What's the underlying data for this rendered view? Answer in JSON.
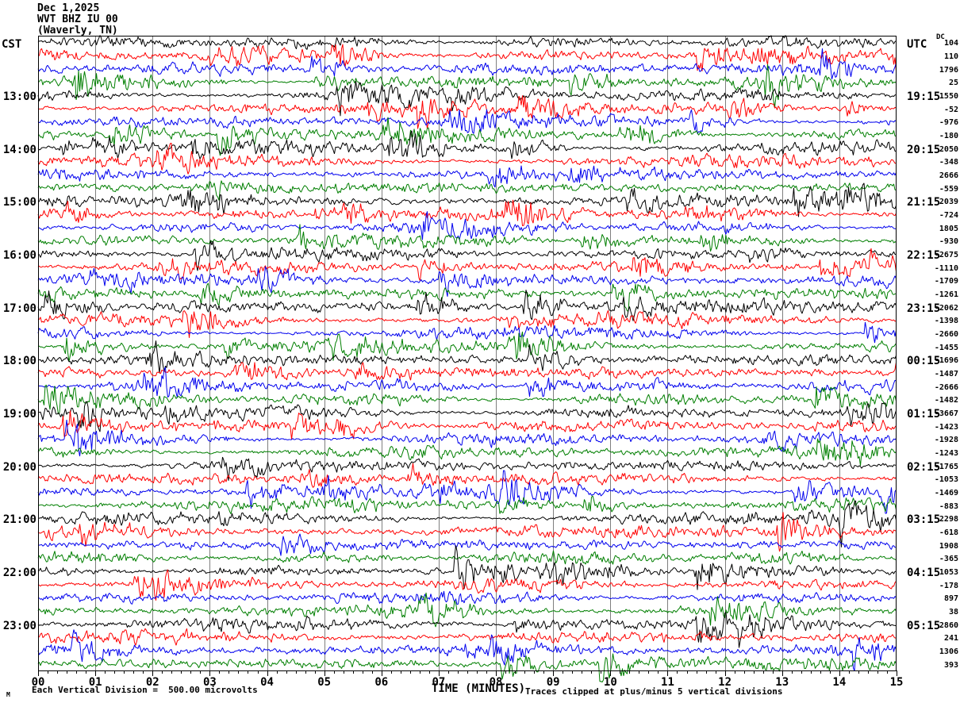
{
  "header": {
    "date": "Dec 1,2025",
    "station": "WVT BHZ IU 00",
    "location": "(Waverly, TN)"
  },
  "left_axis": {
    "header": "CST",
    "hour_labels": [
      "13:00",
      "14:00",
      "15:00",
      "16:00",
      "17:00",
      "18:00",
      "19:00",
      "20:00",
      "21:00",
      "22:00",
      "23:00"
    ]
  },
  "right_axis": {
    "header": "UTC",
    "dc_header": "DC",
    "utc_labels": [
      "19:15",
      "20:15",
      "21:15",
      "22:15",
      "23:15",
      "00:15",
      "01:15",
      "02:15",
      "03:15",
      "04:15",
      "05:15"
    ],
    "dc_values": [
      "104",
      "110",
      "1796",
      "25",
      "1550",
      "-52",
      "-976",
      "-180",
      "2050",
      "-348",
      "2666",
      "-559",
      "2039",
      "-724",
      "1805",
      "-930",
      "-2675",
      "-1110",
      "-1709",
      "-1261",
      "-2062",
      "-1398",
      "-2660",
      "-1455",
      "-1696",
      "-1487",
      "-2666",
      "-1482",
      "-3667",
      "-1423",
      "-1928",
      "-1243",
      "-1765",
      "-1053",
      "-1469",
      "-883",
      "2298",
      "-618",
      "1908",
      "-365",
      "1053",
      "-178",
      "897",
      "38",
      "2860",
      "241",
      "1306",
      "393"
    ]
  },
  "x_axis": {
    "title": "TIME (MINUTES)",
    "minute_labels": [
      "00",
      "01",
      "02",
      "03",
      "04",
      "05",
      "06",
      "07",
      "08",
      "09",
      "10",
      "11",
      "12",
      "13",
      "14",
      "15"
    ]
  },
  "footer": {
    "watermark": "M",
    "left_note": "Each Vertical Division =  500.00 microvolts",
    "right_note": "Traces clipped at plus/minus 5 vertical divisions"
  },
  "colors": {
    "trace_cycle": [
      "#000000",
      "#ff0000",
      "#0000ee",
      "#007f00"
    ],
    "grid": "#7f7f7f",
    "border": "#000000",
    "background": "#ffffff"
  },
  "chart_data": {
    "type": "line",
    "subtype": "helicorder-seismogram",
    "title": "WVT BHZ IU 00 (Waverly, TN) — Dec 1,2025",
    "xlabel": "TIME (MINUTES)",
    "x_range_minutes": [
      0,
      15
    ],
    "x_major_tick_minutes": 1,
    "x_minor_ticks_per_minute": 6,
    "row_count": 48,
    "rows_per_hour": 4,
    "minutes_per_row": 15,
    "timezone_left": "CST",
    "timezone_right": "UTC",
    "left_hour_labels_cst": [
      "13:00",
      "14:00",
      "15:00",
      "16:00",
      "17:00",
      "18:00",
      "19:00",
      "20:00",
      "21:00",
      "22:00",
      "23:00"
    ],
    "right_hour_labels_utc": [
      "19:15",
      "20:15",
      "21:15",
      "22:15",
      "23:15",
      "00:15",
      "01:15",
      "02:15",
      "03:15",
      "04:15",
      "05:15"
    ],
    "dc_offsets": [
      104,
      110,
      1796,
      25,
      1550,
      -52,
      -976,
      -180,
      2050,
      -348,
      2666,
      -559,
      2039,
      -724,
      1805,
      -930,
      -2675,
      -1110,
      -1709,
      -1261,
      -2062,
      -1398,
      -2660,
      -1455,
      -1696,
      -1487,
      -2666,
      -1482,
      -3667,
      -1423,
      -1928,
      -1243,
      -1765,
      -1053,
      -1469,
      -883,
      2298,
      -618,
      1908,
      -365,
      1053,
      -178,
      897,
      38,
      2860,
      241,
      1306,
      393
    ],
    "vertical_division_microvolts": 500.0,
    "clip_plus_minus_divisions": 5,
    "trace_color_cycle_by_row": [
      "black",
      "red",
      "blue",
      "green"
    ],
    "grid": true,
    "legend_position": "none",
    "signal_description": "continuous broadband seismic background noise on all 48 quarter-hour traces"
  }
}
